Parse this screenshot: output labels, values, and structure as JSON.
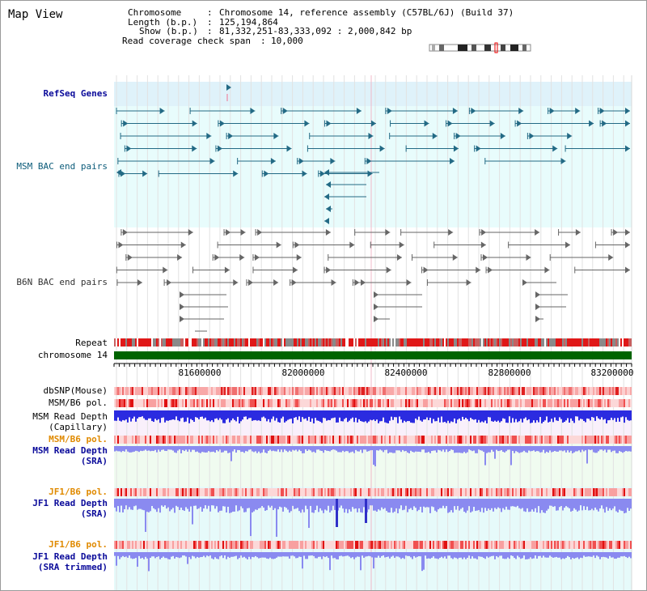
{
  "window": {
    "title": "Map View"
  },
  "header": {
    "chromosome_label": "Chromosome",
    "chromosome_value": "Chromosome 14, reference assembly (C57BL/6J) (Build 37)",
    "length_label": "Length (b.p.)",
    "length_value": "125,194,864",
    "show_label": "Show (b.p.)",
    "show_value": "81,332,251-83,333,092 : 2,000,842 bp",
    "coverage_label": "Read coverage check span",
    "coverage_value": "10,000"
  },
  "tracks": {
    "refseq": "RefSeq Genes",
    "msm_bac": "MSM BAC end pairs",
    "b6n_bac": "B6N BAC end pairs",
    "repeat": "Repeat",
    "chromosome": "chromosome 14",
    "dbsnp": "dbSNP(Mouse)",
    "msm_b6_pol_1": "MSM/B6 pol.",
    "msm_depth_cap_1": "MSM Read Depth",
    "msm_depth_cap_2": "(Capillary)",
    "msm_b6_pol_2": "MSM/B6 pol.",
    "msm_depth_sra_1": "MSM Read Depth",
    "msm_depth_sra_2": "(SRA)",
    "jf1_b6_pol_1": "JF1/B6 pol.",
    "jf1_depth_sra_1": "JF1 Read Depth",
    "jf1_depth_sra_2": "(SRA)",
    "jf1_b6_pol_2": "JF1/B6 pol.",
    "jf1_depth_trim_1": "JF1 Read Depth",
    "jf1_depth_trim_2": "(SRA trimmed)"
  },
  "axis": {
    "ticks": [
      "81600000",
      "82000000",
      "82400000",
      "82800000",
      "83200000"
    ]
  },
  "colors": {
    "refseq_bg": "#dff2fa",
    "msm_bg": "#e8fcfc",
    "feature_teal": "#236a85",
    "feature_gray": "#666666",
    "chromosome_green": "#006400",
    "depth_blue": "#2b2be0",
    "depth_light": "#8a8af0",
    "pol_red": "#e83a3a",
    "orange_label": "#e08a00"
  }
}
